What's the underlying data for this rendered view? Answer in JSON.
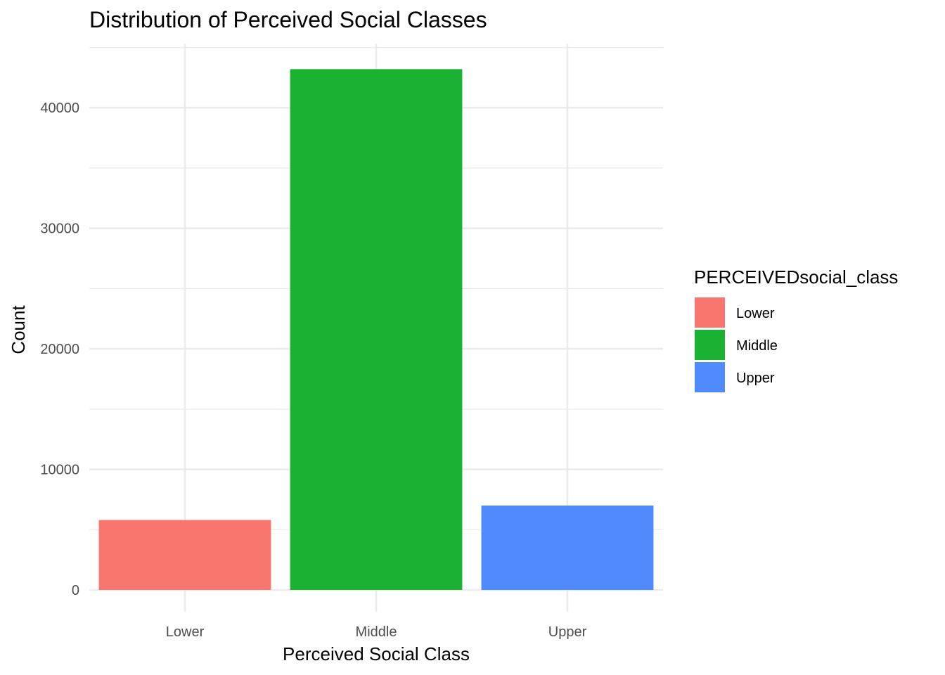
{
  "chart_data": {
    "type": "bar",
    "title": "Distribution of Perceived Social Classes",
    "xlabel": "Perceived Social Class",
    "ylabel": "Count",
    "categories": [
      "Lower",
      "Middle",
      "Upper"
    ],
    "values": [
      5800,
      43200,
      7000
    ],
    "colors": [
      "#F8766D",
      "#1BB233",
      "#4F8BFF"
    ],
    "ylim": [
      0,
      45600
    ],
    "yticks": [
      0,
      10000,
      20000,
      30000,
      40000
    ],
    "yticks_minor": [
      5000,
      15000,
      25000,
      35000,
      45000
    ],
    "grid": true,
    "legend": {
      "title": "PERCEIVEDsocial_class",
      "placement": "right",
      "entries": [
        "Lower",
        "Middle",
        "Upper"
      ]
    }
  }
}
